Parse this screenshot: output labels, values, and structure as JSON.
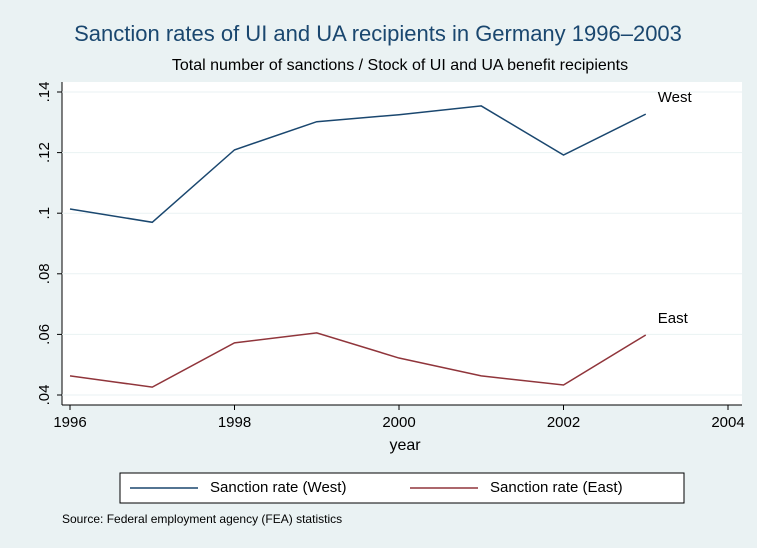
{
  "chart_data": {
    "type": "line",
    "title": "Sanction rates of UI and UA recipients in Germany 1996–2003",
    "subtitle": "Total number of sanctions / Stock of UI and UA benefit recipients",
    "x_label": "year",
    "x": [
      1996,
      1997,
      1998,
      1999,
      2000,
      2001,
      2002,
      2003
    ],
    "series": [
      {
        "name": "Sanction rate (West)",
        "color": "#1a476f",
        "values": [
          0.1014,
          0.097,
          0.1209,
          0.1302,
          0.1325,
          0.1354,
          0.1192,
          0.1327
        ]
      },
      {
        "name": "Sanction rate (East)",
        "color": "#90353b",
        "values": [
          0.0463,
          0.0426,
          0.0572,
          0.0605,
          0.0522,
          0.0463,
          0.0433,
          0.0598
        ]
      }
    ],
    "annotations": [
      "West",
      "East"
    ],
    "xlim": [
      1996,
      2004
    ],
    "xticks": [
      1996,
      1998,
      2000,
      2002,
      2004
    ],
    "ylim": [
      0.04,
      0.14
    ],
    "yticks": [
      {
        "value": 0.04,
        "label": ".04"
      },
      {
        "value": 0.06,
        "label": ".06"
      },
      {
        "value": 0.08,
        "label": ".08"
      },
      {
        "value": 0.1,
        "label": ".1"
      },
      {
        "value": 0.12,
        "label": ".12"
      },
      {
        "value": 0.14,
        "label": ".14"
      }
    ],
    "grid": true,
    "legend": "bottom",
    "source": "Source: Federal employment agency (FEA) statistics"
  }
}
